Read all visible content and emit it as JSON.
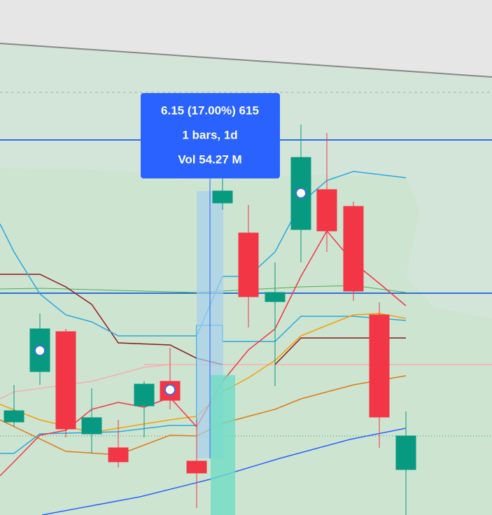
{
  "tooltip": {
    "change": "6.15 (17.00%) 615",
    "bars": "1 bars, 1d",
    "volume": "Vol 54.27 M"
  }
}
